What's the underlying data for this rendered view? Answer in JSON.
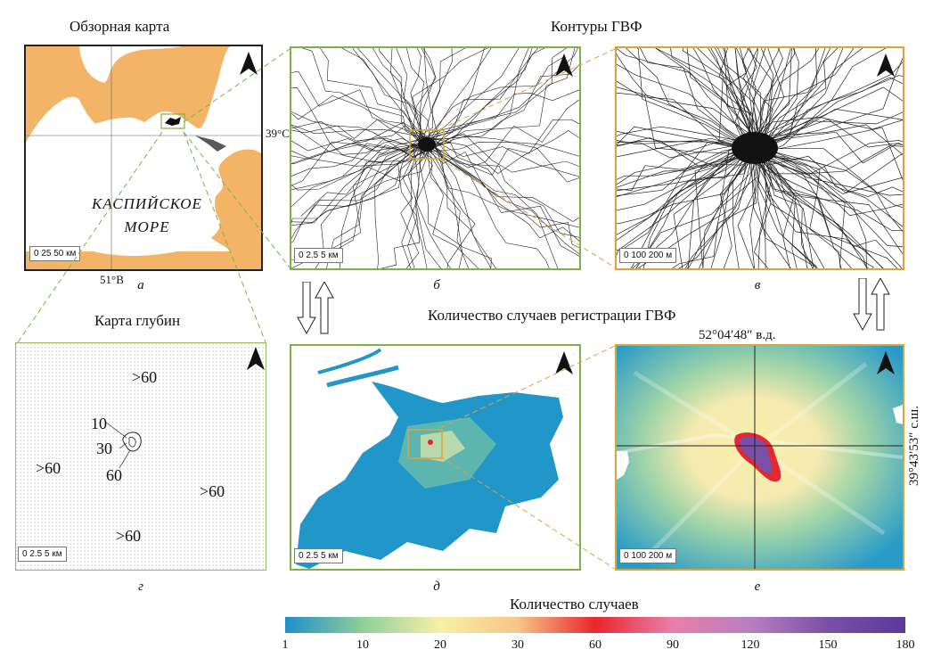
{
  "titles": {
    "overview": "Обзорная карта",
    "contours": "Контуры ГВФ",
    "depth": "Карта глубин",
    "count": "Количество случаев регистрации ГВФ"
  },
  "captions": {
    "a": "а",
    "b": "б",
    "v": "в",
    "g": "г",
    "d": "д",
    "e": "е"
  },
  "overview_map": {
    "sea_label_line1": "КАСПИЙСКОЕ",
    "sea_label_line2": "МОРЕ",
    "lat_label": "39°С",
    "lon_label": "51°В",
    "scale": "0 25 50 км"
  },
  "scales": {
    "km5": "0   2.5   5 км",
    "m200": "0 100 200 м"
  },
  "depth_map": {
    "labels": [
      ">60",
      ">60",
      ">60",
      ">60",
      "10",
      "30",
      "60"
    ]
  },
  "coords": {
    "lon": "52°04′48″ в.д.",
    "lat": "39°43′53″ с.ш."
  },
  "legend": {
    "title": "Количество случаев",
    "ticks": [
      "1",
      "10",
      "20",
      "30",
      "60",
      "90",
      "120",
      "150",
      "180"
    ],
    "colors": [
      "#1f8fc9",
      "#8fcf9a",
      "#f7f0a8",
      "#f7c58a",
      "#e8262d",
      "#e87fa8",
      "#b77fc0",
      "#7a4fa8",
      "#5b3a9a"
    ]
  }
}
